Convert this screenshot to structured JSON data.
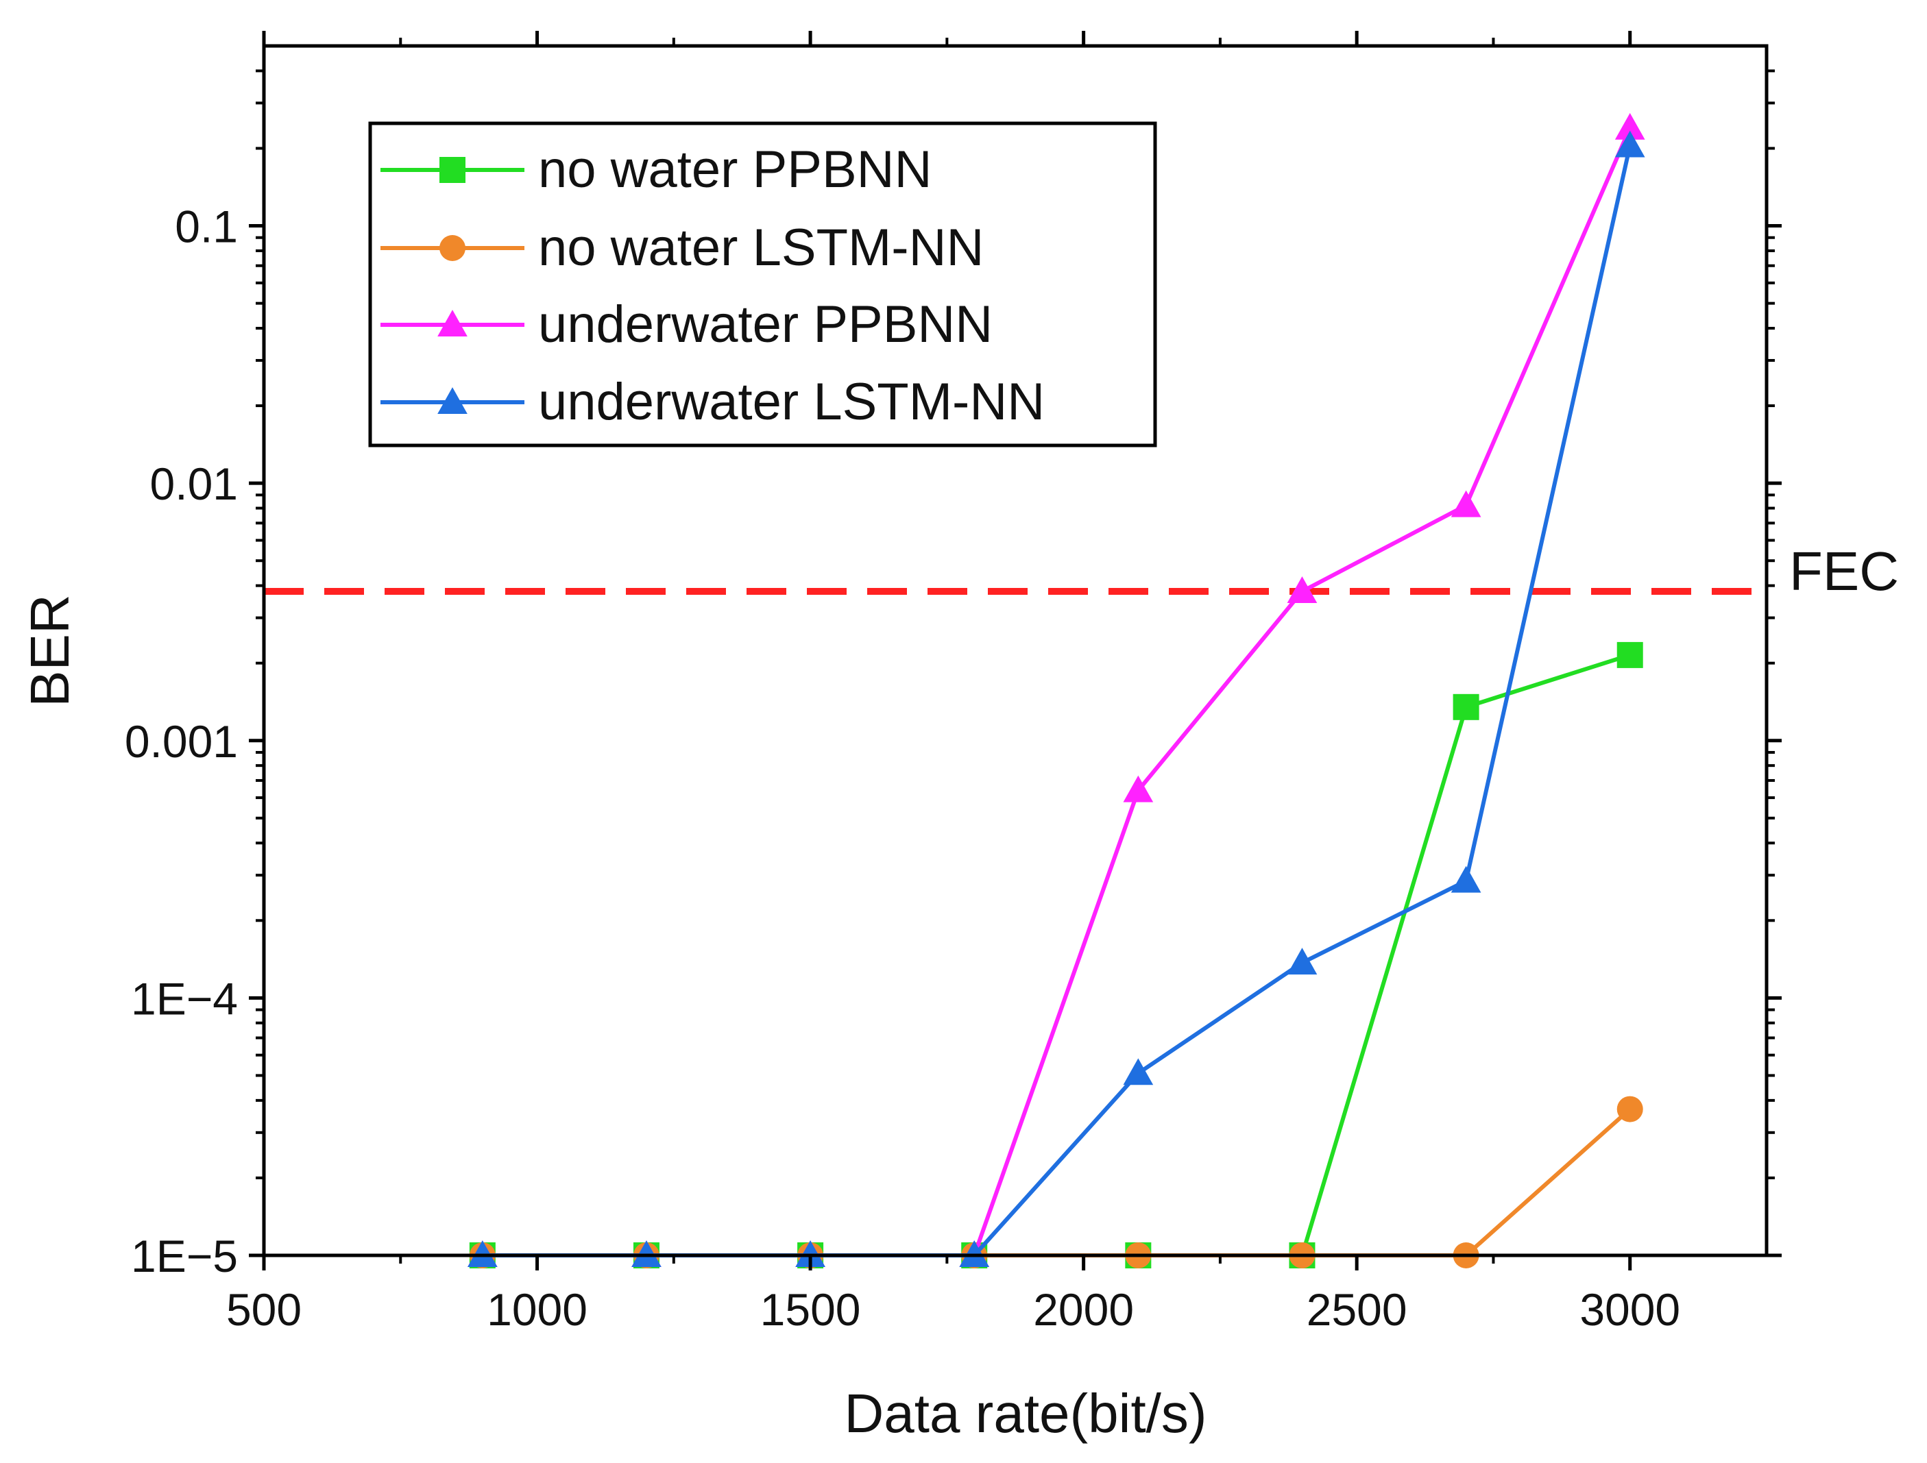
{
  "chart_data": {
    "type": "line",
    "title": "",
    "xlabel": "Data rate(bit/s)",
    "ylabel": "BER",
    "xlim": [
      500,
      3250
    ],
    "ylim": [
      1e-05,
      0.5
    ],
    "yscale": "log",
    "x_ticks": [
      500,
      1000,
      1500,
      2000,
      2500,
      3000
    ],
    "x_tick_labels": [
      "500",
      "1000",
      "1500",
      "2000",
      "2500",
      "3000"
    ],
    "y_ticks": [
      1e-05,
      0.0001,
      0.001,
      0.01,
      0.1
    ],
    "y_tick_labels": [
      "1E−5",
      "1E−4",
      "0.001",
      "0.01",
      "0.1"
    ],
    "grid": false,
    "legend_position": "top-left",
    "series": [
      {
        "name": "no water PPBNN",
        "color": "#22dd22",
        "marker": "square",
        "x": [
          900,
          1200,
          1500,
          1800,
          2100,
          2400,
          2700,
          3000
        ],
        "y": [
          1e-05,
          1e-05,
          1e-05,
          1e-05,
          1e-05,
          1e-05,
          0.00135,
          0.00215
        ]
      },
      {
        "name": "no water LSTM-NN",
        "color": "#f0882a",
        "marker": "circle",
        "x": [
          900,
          1200,
          1500,
          1800,
          2100,
          2400,
          2700,
          3000
        ],
        "y": [
          1e-05,
          1e-05,
          1e-05,
          1e-05,
          1e-05,
          1e-05,
          1e-05,
          3.7e-05
        ]
      },
      {
        "name": "underwater PPBNN",
        "color": "#ff22ff",
        "marker": "triangle",
        "x": [
          900,
          1200,
          1500,
          1800,
          2100,
          2400,
          2700,
          3000
        ],
        "y": [
          1e-05,
          1e-05,
          1e-05,
          1e-05,
          0.00064,
          0.0038,
          0.0082,
          0.24
        ]
      },
      {
        "name": "underwater LSTM-NN",
        "color": "#1f6fe0",
        "marker": "triangle",
        "x": [
          900,
          1200,
          1500,
          1800,
          2100,
          2400,
          2700,
          3000
        ],
        "y": [
          1e-05,
          1e-05,
          1e-05,
          1e-05,
          5.1e-05,
          0.000137,
          0.000285,
          0.205
        ]
      }
    ],
    "reference_lines": [
      {
        "label": "FEC",
        "y": 0.0038,
        "color": "#ff2222",
        "style": "dashed"
      }
    ]
  }
}
